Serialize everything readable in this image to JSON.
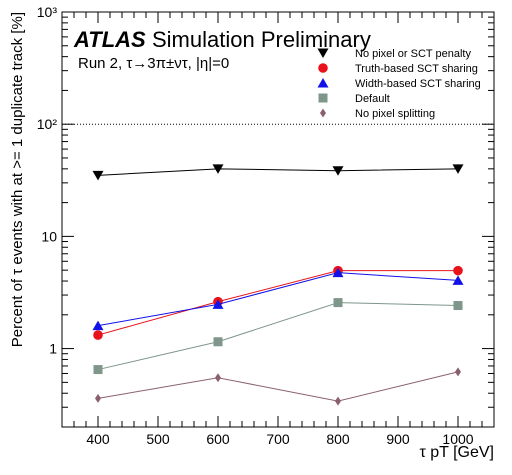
{
  "chart_data": {
    "type": "line",
    "brand": "ATLAS",
    "title": "Simulation Preliminary",
    "subtitle": "Run 2, τ→3π±ντ, |η|=0",
    "xlabel": "τ pT [GeV]",
    "ylabel": "Percent of τ events with at >= 1 duplicate track [%]",
    "x_scale": "linear",
    "y_scale": "log",
    "xlim": [
      340,
      1060
    ],
    "ylim": [
      0.2,
      1000
    ],
    "x_ticks": [
      400,
      500,
      600,
      700,
      800,
      900,
      1000
    ],
    "y_ticks": [
      {
        "value": 1,
        "label": "1"
      },
      {
        "value": 10,
        "label": "10"
      },
      {
        "value": 100,
        "label": "10²"
      },
      {
        "value": 1000,
        "label": "10³"
      }
    ],
    "reference_line": {
      "value": 100,
      "style": "dotted"
    },
    "grid": false,
    "legend_position": "top-right",
    "x": [
      400,
      600,
      800,
      1000
    ],
    "series": [
      {
        "name": "No pixel or SCT penalty",
        "marker": "triangle-down",
        "color": "#000000",
        "values": [
          35,
          40,
          38.5,
          40
        ]
      },
      {
        "name": "Truth-based SCT sharing",
        "marker": "circle",
        "color": "#e8121a",
        "values": [
          1.32,
          2.62,
          4.95,
          4.95
        ]
      },
      {
        "name": "Width-based SCT sharing",
        "marker": "triangle-up",
        "color": "#1212e8",
        "values": [
          1.6,
          2.48,
          4.75,
          4.05
        ]
      },
      {
        "name": "Default",
        "marker": "square",
        "color": "#7f968a",
        "values": [
          0.65,
          1.15,
          2.57,
          2.42
        ]
      },
      {
        "name": "No pixel splitting",
        "marker": "diamond",
        "color": "#8a6070",
        "values": [
          0.36,
          0.55,
          0.34,
          0.62
        ]
      }
    ]
  }
}
